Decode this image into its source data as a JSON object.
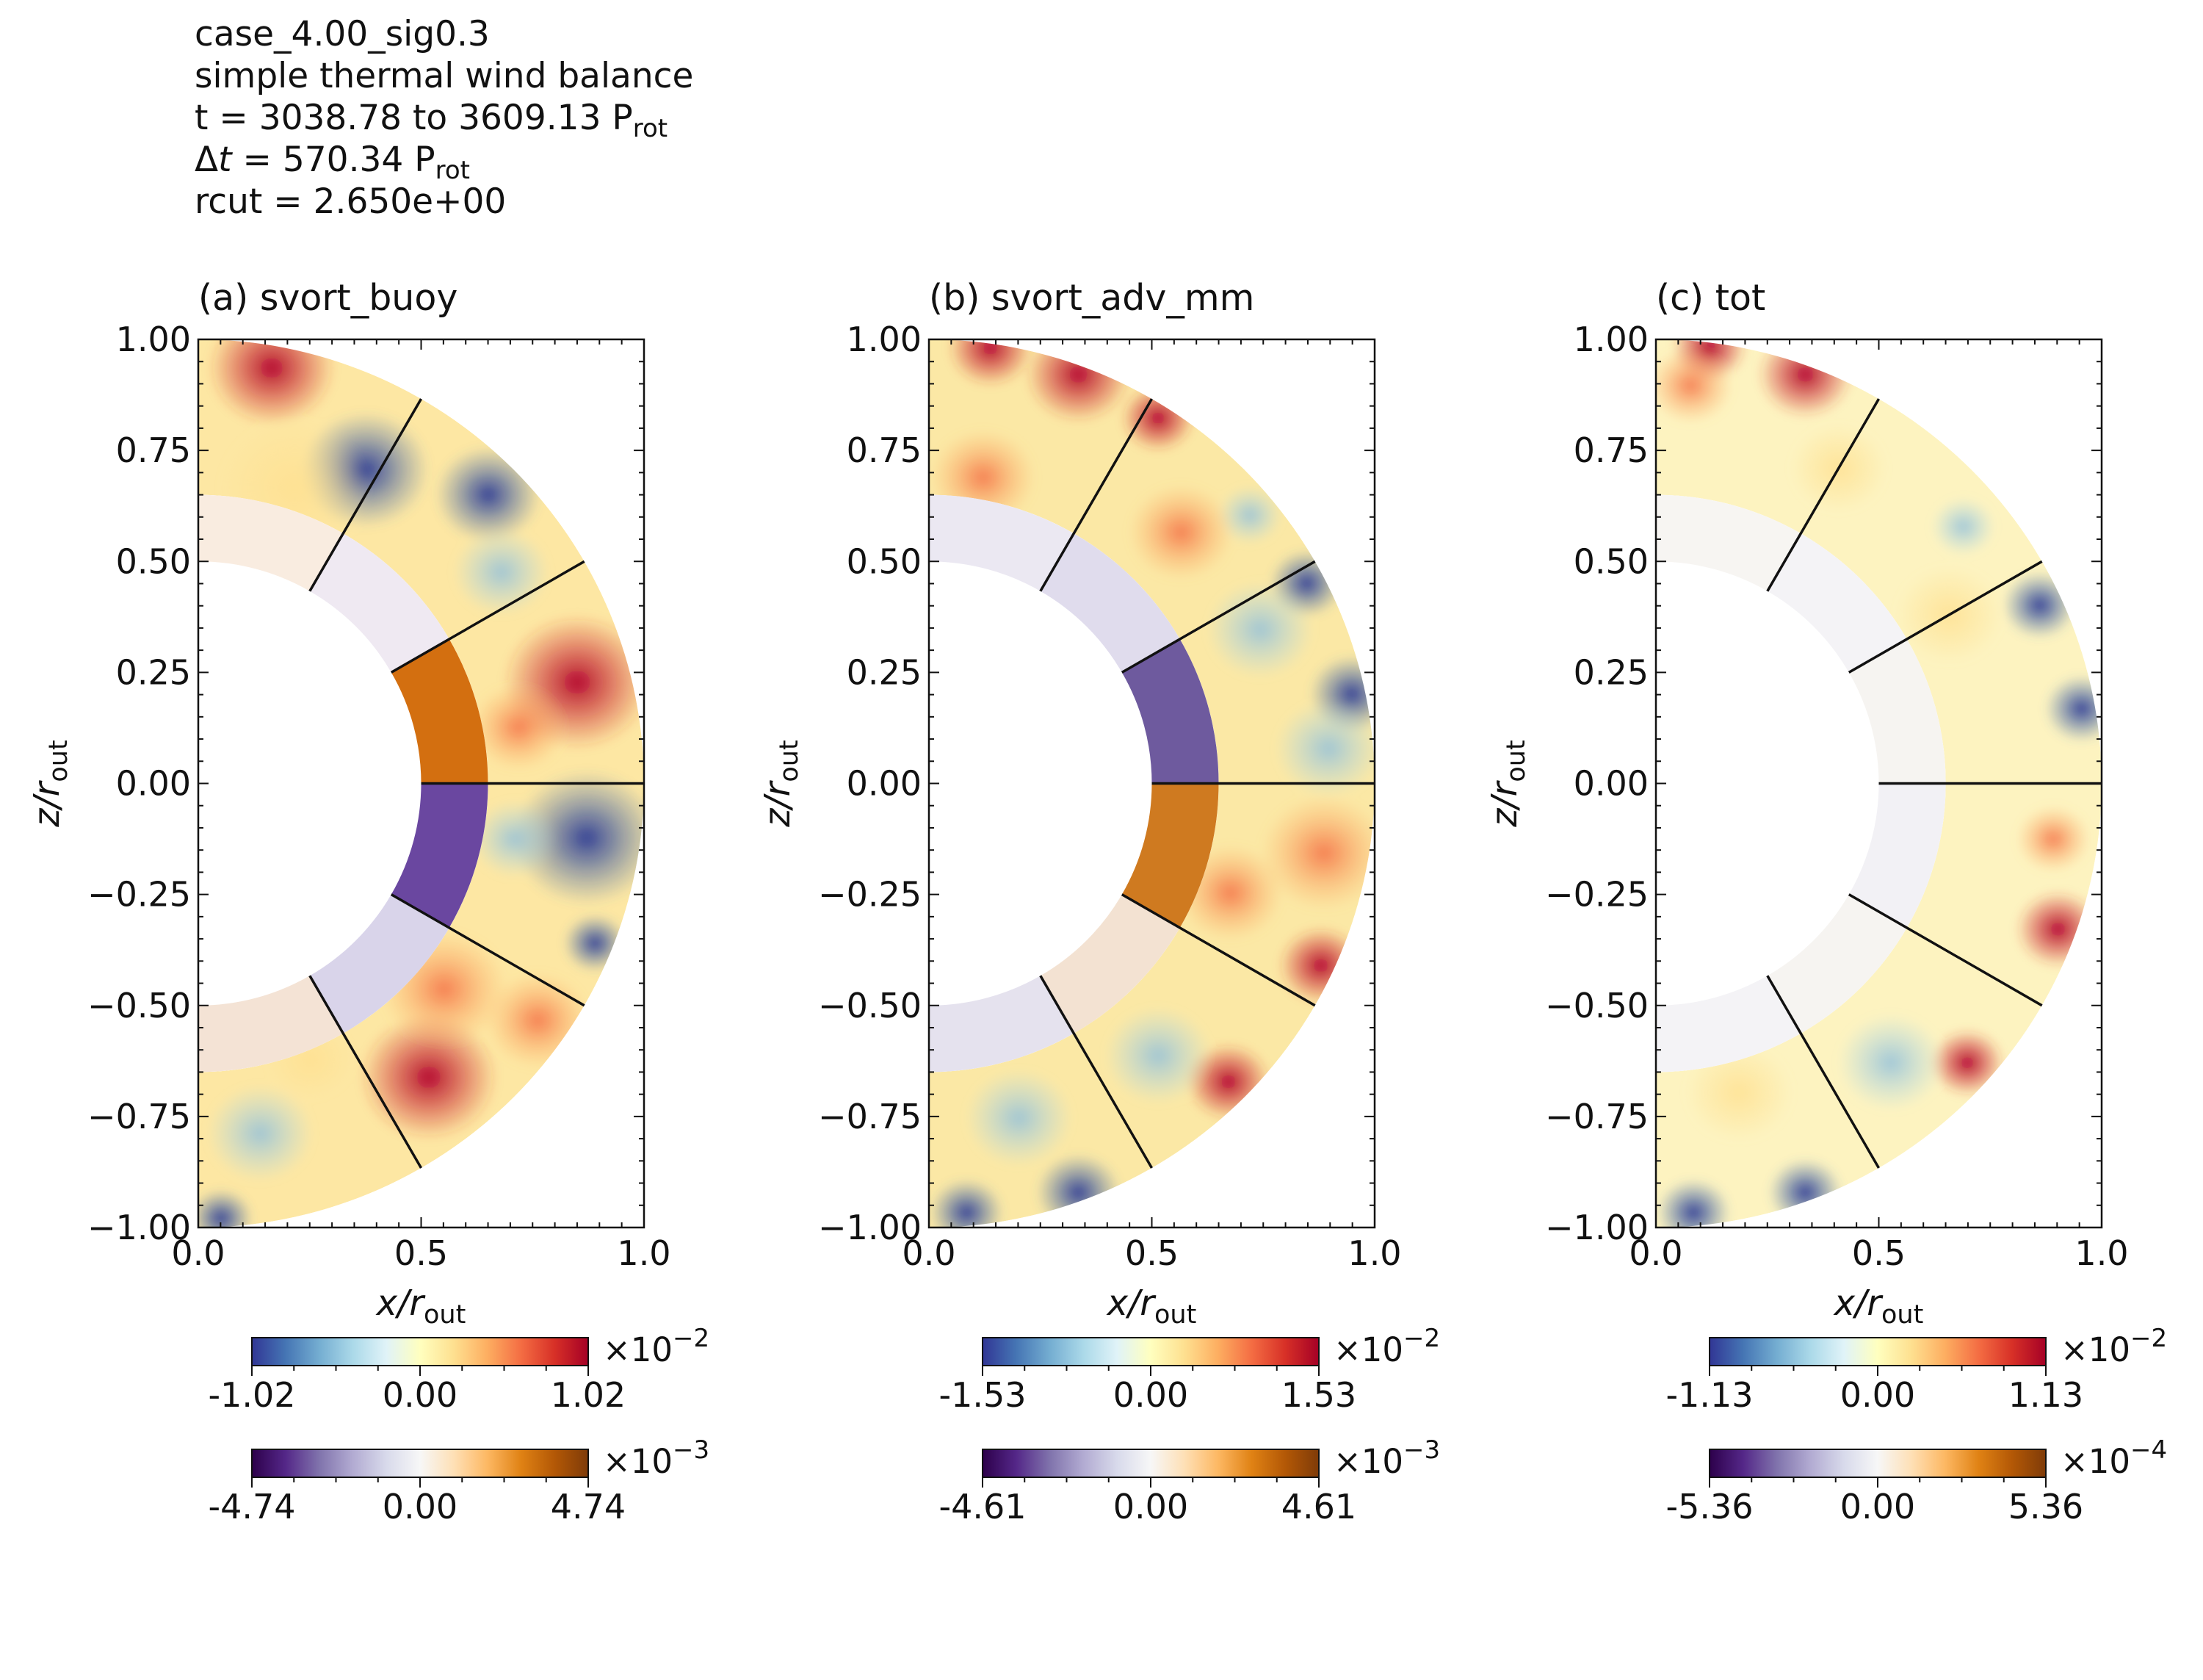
{
  "header": {
    "case": "case_4.00_sig0.3",
    "subtitle": "simple thermal wind balance",
    "t_prefix": "t = 3038.78 to 3609.13 P",
    "t_sub": "rot",
    "dt_symbol": "Δ",
    "dt_var": "t",
    "dt_value": " = 570.34 P",
    "dt_sub": "rot",
    "rcut": "rcut = 2.650e+00"
  },
  "axes": {
    "xlabel_var": "x/r",
    "xlabel_sub": "out",
    "ylabel_var": "z/r",
    "ylabel_sub": "out"
  },
  "colors": {
    "diverging_rdylbu_r": [
      "#313695",
      "#4575b4",
      "#74add1",
      "#abd9e9",
      "#e0f3f8",
      "#ffffbf",
      "#fee090",
      "#fdae61",
      "#f46d43",
      "#d73027",
      "#a50026"
    ],
    "diverging_puor_r": [
      "#2d004b",
      "#542788",
      "#8073ac",
      "#b2abd2",
      "#d8daeb",
      "#f7f7f7",
      "#fee0b6",
      "#fdb863",
      "#e08214",
      "#b35806",
      "#7f3b08"
    ],
    "frame": "#111111"
  },
  "chart_data": [
    {
      "type": "heatmap",
      "title": "(a) svort_buoy",
      "xlim": [
        0.0,
        1.0
      ],
      "ylim": [
        -1.0,
        1.0
      ],
      "xticks": [
        "0.0",
        "0.5",
        "1.0"
      ],
      "yticks": [
        "1.00",
        "0.75",
        "0.50",
        "0.25",
        "0.00",
        "−0.25",
        "−0.50",
        "−0.75",
        "−1.00"
      ],
      "domain": "meridional half-annulus, inner radius 0.5 r_out, outer radius 1.0 r_out; inner shell to radius 0.65 r_out uses second colormap",
      "latitude_cuts_deg": [
        60,
        30,
        0,
        -30,
        -60
      ],
      "colorbar_outer": {
        "min": "-1.02",
        "mid": "0.00",
        "max": "1.02",
        "exponent_base": "×10",
        "exponent": "−2"
      },
      "colorbar_inner": {
        "min": "-4.74",
        "mid": "0.00",
        "max": "4.74",
        "exponent_base": "×10",
        "exponent": "−3"
      },
      "pattern": {
        "outer_north": "mixed positive, negative blobs mid-latitudes",
        "outer_south": "negative near equator, positive at mid-latitudes",
        "inner_north_equator": "positive (orange)",
        "inner_south_equator": "negative (purple)"
      }
    },
    {
      "type": "heatmap",
      "title": "(b) svort_adv_mm",
      "xlim": [
        0.0,
        1.0
      ],
      "ylim": [
        -1.0,
        1.0
      ],
      "xticks": [
        "0.0",
        "0.5",
        "1.0"
      ],
      "yticks": [
        "1.00",
        "0.75",
        "0.50",
        "0.25",
        "0.00",
        "−0.25",
        "−0.50",
        "−0.75",
        "−1.00"
      ],
      "domain": "meridional half-annulus, inner radius 0.5 r_out, outer radius 1.0 r_out; inner shell to radius 0.65 r_out uses second colormap",
      "latitude_cuts_deg": [
        60,
        30,
        0,
        -30,
        -60
      ],
      "colorbar_outer": {
        "min": "-1.53",
        "mid": "0.00",
        "max": "1.53",
        "exponent_base": "×10",
        "exponent": "−2"
      },
      "colorbar_inner": {
        "min": "-4.61",
        "mid": "0.00",
        "max": "4.61",
        "exponent_base": "×10",
        "exponent": "−3"
      },
      "pattern": {
        "outer_north": "positive rim at high latitude, negative rim near equator",
        "outer_south": "positive near equator, negative rim at high latitude",
        "inner_north_equator": "negative (purple)",
        "inner_south_equator": "positive (orange)"
      }
    },
    {
      "type": "heatmap",
      "title": "(c) tot",
      "xlim": [
        0.0,
        1.0
      ],
      "ylim": [
        -1.0,
        1.0
      ],
      "xticks": [
        "0.0",
        "0.5",
        "1.0"
      ],
      "yticks": [
        "1.00",
        "0.75",
        "0.50",
        "0.25",
        "0.00",
        "−0.25",
        "−0.50",
        "−0.75",
        "−1.00"
      ],
      "domain": "meridional half-annulus, inner radius 0.5 r_out, outer radius 1.0 r_out; inner shell to radius 0.65 r_out uses second colormap",
      "latitude_cuts_deg": [
        60,
        30,
        0,
        -30,
        -60
      ],
      "colorbar_outer": {
        "min": "-1.13",
        "mid": "0.00",
        "max": "1.13",
        "exponent_base": "×10",
        "exponent": "−2"
      },
      "colorbar_inner": {
        "min": "-5.36",
        "mid": "0.00",
        "max": "5.36",
        "exponent_base": "×10",
        "exponent": "−4"
      },
      "pattern": {
        "outer_north": "weak positive interior, positive rim at high latitude, negative rim near equator",
        "outer_south": "positive rim near equator, negative rim at high latitude",
        "inner": "near zero"
      }
    }
  ]
}
